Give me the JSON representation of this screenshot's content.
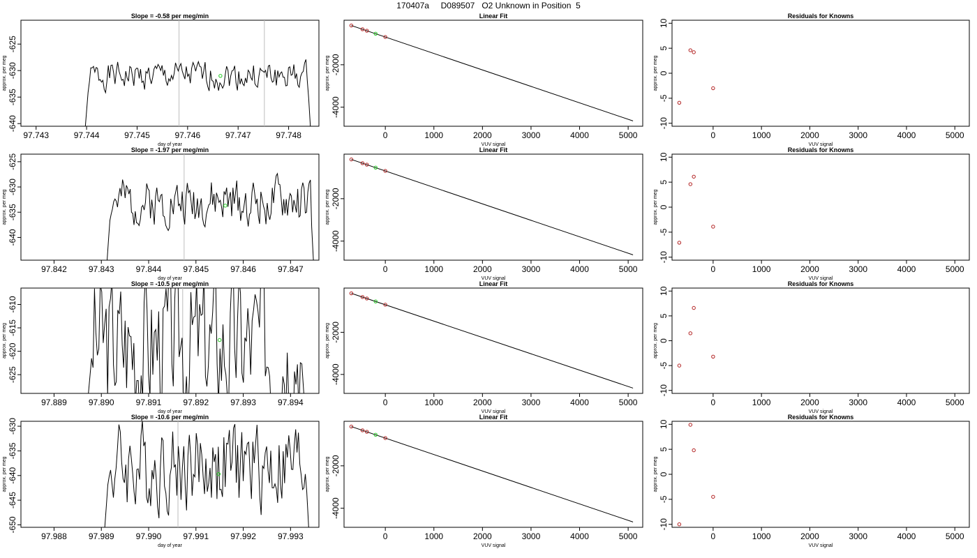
{
  "title": "170407a     D089507   O2 Unknown in Position  5",
  "colors": {
    "trace": "#000000",
    "point_known": "#b22222",
    "point_unknown": "#22cc22",
    "vline": "#bdbdbd"
  },
  "chart_data": [
    {
      "type": "line",
      "panel": "time-series",
      "row": 0,
      "title": "Slope =  -0.58  per meg/min",
      "xlabel": "day of year",
      "ylabel": "approx. per meg",
      "xlim": [
        97.7427,
        97.7486
      ],
      "ylim": [
        -640.5,
        -620.5
      ],
      "xticks": [
        97.743,
        97.744,
        97.745,
        97.746,
        97.747,
        97.748
      ],
      "xtick_labels": [
        "97.743",
        "97.744",
        "97.745",
        "97.746",
        "97.747",
        "97.748"
      ],
      "yticks": [
        -640,
        -635,
        -630,
        -625
      ],
      "ytick_labels": [
        "-640",
        "-635",
        "-630",
        "-625"
      ],
      "vlines": [
        97.74583,
        97.74752
      ],
      "highlight": {
        "x": 97.74665,
        "y": -631.0
      },
      "trace": {
        "x_start": 97.74395,
        "x_end": 97.74845,
        "n": 170,
        "mean": -631.0,
        "amp": 2.6,
        "seed": 1
      }
    },
    {
      "type": "scatter",
      "panel": "linear-fit",
      "row": 0,
      "title": "Linear Fit",
      "xlabel": "VUV signal",
      "ylabel": "approx. per meg",
      "xlim": [
        -850,
        5300
      ],
      "ylim": [
        -4900,
        100
      ],
      "xticks": [
        0,
        1000,
        2000,
        3000,
        4000,
        5000
      ],
      "xtick_labels": [
        "0",
        "1000",
        "2000",
        "3000",
        "4000",
        "5000"
      ],
      "yticks": [
        -4000,
        -2000
      ],
      "ytick_labels": [
        "-4000",
        "-2000"
      ],
      "line": {
        "x1": -700,
        "y1": -150,
        "x2": 5100,
        "y2": -4650
      },
      "known_points": [
        {
          "x": -700,
          "y": -150
        },
        {
          "x": -470,
          "y": -325
        },
        {
          "x": -380,
          "y": -395
        },
        {
          "x": 0,
          "y": -690
        }
      ],
      "unknown_point": {
        "x": -200,
        "y": -535
      }
    },
    {
      "type": "scatter",
      "panel": "residuals",
      "row": 0,
      "title": "Residuals for Knowns",
      "xlabel": "VUV signal",
      "ylabel": "approx. per meg",
      "xlim": [
        -850,
        5300
      ],
      "ylim": [
        -10.6,
        10.6
      ],
      "xticks": [
        0,
        1000,
        2000,
        3000,
        4000,
        5000
      ],
      "xtick_labels": [
        "0",
        "1000",
        "2000",
        "3000",
        "4000",
        "5000"
      ],
      "yticks": [
        -10,
        -5,
        0,
        5,
        10
      ],
      "ytick_labels": [
        "-10",
        "-5",
        "0",
        "5",
        "10"
      ],
      "points": [
        {
          "x": -700,
          "y": -5.9
        },
        {
          "x": -470,
          "y": 4.6
        },
        {
          "x": -400,
          "y": 4.2
        },
        {
          "x": 0,
          "y": -3.0
        }
      ]
    },
    {
      "type": "line",
      "panel": "time-series",
      "row": 1,
      "title": "Slope =  -1.97  per meg/min",
      "xlabel": "day of year",
      "ylabel": "approx. per meg",
      "xlim": [
        97.8413,
        97.8476
      ],
      "ylim": [
        -644.5,
        -623.5
      ],
      "xticks": [
        97.842,
        97.843,
        97.844,
        97.845,
        97.846,
        97.847
      ],
      "xtick_labels": [
        "97.842",
        "97.843",
        "97.844",
        "97.845",
        "97.846",
        "97.847"
      ],
      "yticks": [
        -640,
        -635,
        -630,
        -625
      ],
      "ytick_labels": [
        "-640",
        "-635",
        "-630",
        "-625"
      ],
      "vlines": [
        97.84475
      ],
      "highlight": {
        "x": 97.84562,
        "y": -633.7
      },
      "trace": {
        "x_start": 97.8431,
        "x_end": 97.8475,
        "n": 165,
        "mean": -633.0,
        "amp": 4.5,
        "seed": 2
      }
    },
    {
      "type": "scatter",
      "panel": "linear-fit",
      "row": 1,
      "title": "Linear Fit",
      "xlabel": "VUV signal",
      "ylabel": "approx. per meg",
      "xlim": [
        -850,
        5300
      ],
      "ylim": [
        -4900,
        100
      ],
      "xticks": [
        0,
        1000,
        2000,
        3000,
        4000,
        5000
      ],
      "xtick_labels": [
        "0",
        "1000",
        "2000",
        "3000",
        "4000",
        "5000"
      ],
      "yticks": [
        -4000,
        -2000
      ],
      "ytick_labels": [
        "-4000",
        "-2000"
      ],
      "line": {
        "x1": -700,
        "y1": -150,
        "x2": 5100,
        "y2": -4650
      },
      "known_points": [
        {
          "x": -700,
          "y": -150
        },
        {
          "x": -470,
          "y": -325
        },
        {
          "x": -380,
          "y": -395
        },
        {
          "x": 0,
          "y": -690
        }
      ],
      "unknown_point": {
        "x": -200,
        "y": -535
      }
    },
    {
      "type": "scatter",
      "panel": "residuals",
      "row": 1,
      "title": "Residuals for Knowns",
      "xlabel": "VUV signal",
      "ylabel": "approx. per meg",
      "xlim": [
        -850,
        5300
      ],
      "ylim": [
        -10.6,
        10.6
      ],
      "xticks": [
        0,
        1000,
        2000,
        3000,
        4000,
        5000
      ],
      "xtick_labels": [
        "0",
        "1000",
        "2000",
        "3000",
        "4000",
        "5000"
      ],
      "yticks": [
        -10,
        -5,
        0,
        5,
        10
      ],
      "ytick_labels": [
        "-10",
        "-5",
        "0",
        "5",
        "10"
      ],
      "points": [
        {
          "x": -700,
          "y": -7.1
        },
        {
          "x": -470,
          "y": 4.6
        },
        {
          "x": -400,
          "y": 6.1
        },
        {
          "x": 0,
          "y": -3.9
        }
      ]
    },
    {
      "type": "line",
      "panel": "time-series",
      "row": 2,
      "title": "Slope =  -10.5  per meg/min",
      "xlabel": "day of year",
      "ylabel": "approx. per meg",
      "xlim": [
        97.8883,
        97.8946
      ],
      "ylim": [
        -629,
        -606.5
      ],
      "xticks": [
        97.889,
        97.89,
        97.891,
        97.892,
        97.893,
        97.894
      ],
      "xtick_labels": [
        "97.889",
        "97.890",
        "97.891",
        "97.892",
        "97.893",
        "97.894"
      ],
      "yticks": [
        -625,
        -620,
        -615,
        -610
      ],
      "ytick_labels": [
        "-625",
        "-620",
        "-615",
        "-610"
      ],
      "vlines": [
        97.89172
      ],
      "highlight": {
        "x": 97.8925,
        "y": -617.6
      },
      "trace": {
        "x_start": 97.8897,
        "x_end": 97.8943,
        "n": 150,
        "mean": -618.0,
        "amp": 16.0,
        "seed": 3
      }
    },
    {
      "type": "scatter",
      "panel": "linear-fit",
      "row": 2,
      "title": "Linear Fit",
      "xlabel": "VUV signal",
      "ylabel": "approx. per meg",
      "xlim": [
        -850,
        5300
      ],
      "ylim": [
        -4900,
        100
      ],
      "xticks": [
        0,
        1000,
        2000,
        3000,
        4000,
        5000
      ],
      "xtick_labels": [
        "0",
        "1000",
        "2000",
        "3000",
        "4000",
        "5000"
      ],
      "yticks": [
        -4000,
        -2000
      ],
      "ytick_labels": [
        "-4000",
        "-2000"
      ],
      "line": {
        "x1": -700,
        "y1": -150,
        "x2": 5100,
        "y2": -4650
      },
      "known_points": [
        {
          "x": -700,
          "y": -150
        },
        {
          "x": -470,
          "y": -325
        },
        {
          "x": -380,
          "y": -395
        },
        {
          "x": 0,
          "y": -690
        }
      ],
      "unknown_point": {
        "x": -200,
        "y": -535
      }
    },
    {
      "type": "scatter",
      "panel": "residuals",
      "row": 2,
      "title": "Residuals for Knowns",
      "xlabel": "VUV signal",
      "ylabel": "approx. per meg",
      "xlim": [
        -850,
        5300
      ],
      "ylim": [
        -10.6,
        10.6
      ],
      "xticks": [
        0,
        1000,
        2000,
        3000,
        4000,
        5000
      ],
      "xtick_labels": [
        "0",
        "1000",
        "2000",
        "3000",
        "4000",
        "5000"
      ],
      "yticks": [
        -10,
        -5,
        0,
        5,
        10
      ],
      "ytick_labels": [
        "-10",
        "-5",
        "0",
        "5",
        "10"
      ],
      "points": [
        {
          "x": -700,
          "y": -5.0
        },
        {
          "x": -470,
          "y": 1.5
        },
        {
          "x": -400,
          "y": 6.6
        },
        {
          "x": 0,
          "y": -3.2
        }
      ]
    },
    {
      "type": "line",
      "panel": "time-series",
      "row": 3,
      "title": "Slope =  -10.6  per meg/min",
      "xlabel": "day of year",
      "ylabel": "approx. per meg",
      "xlim": [
        97.9873,
        97.9936
      ],
      "ylim": [
        -650.5,
        -629
      ],
      "xticks": [
        97.988,
        97.989,
        97.99,
        97.991,
        97.992,
        97.993
      ],
      "xtick_labels": [
        "97.988",
        "97.989",
        "97.990",
        "97.991",
        "97.992",
        "97.993"
      ],
      "yticks": [
        -650,
        -645,
        -640,
        -635,
        -630
      ],
      "ytick_labels": [
        "-650",
        "-645",
        "-640",
        "-635",
        "-630"
      ],
      "vlines": [
        97.99062
      ],
      "highlight": {
        "x": 97.99148,
        "y": -639.7
      },
      "trace": {
        "x_start": 97.98905,
        "x_end": 97.9934,
        "n": 150,
        "mean": -638.0,
        "amp": 9.0,
        "seed": 4
      }
    },
    {
      "type": "scatter",
      "panel": "linear-fit",
      "row": 3,
      "title": "Linear Fit",
      "xlabel": "VUV signal",
      "ylabel": "approx. per meg",
      "xlim": [
        -850,
        5300
      ],
      "ylim": [
        -4900,
        100
      ],
      "xticks": [
        0,
        1000,
        2000,
        3000,
        4000,
        5000
      ],
      "xtick_labels": [
        "0",
        "1000",
        "2000",
        "3000",
        "4000",
        "5000"
      ],
      "yticks": [
        -4000,
        -2000
      ],
      "ytick_labels": [
        "-4000",
        "-2000"
      ],
      "line": {
        "x1": -700,
        "y1": -150,
        "x2": 5100,
        "y2": -4650
      },
      "known_points": [
        {
          "x": -700,
          "y": -150
        },
        {
          "x": -470,
          "y": -325
        },
        {
          "x": -380,
          "y": -395
        },
        {
          "x": 0,
          "y": -690
        }
      ],
      "unknown_point": {
        "x": -200,
        "y": -535
      }
    },
    {
      "type": "scatter",
      "panel": "residuals",
      "row": 3,
      "title": "Residuals for Knowns",
      "xlabel": "VUV signal",
      "ylabel": "approx. per meg",
      "xlim": [
        -850,
        5300
      ],
      "ylim": [
        -10.6,
        10.6
      ],
      "xticks": [
        0,
        1000,
        2000,
        3000,
        4000,
        5000
      ],
      "xtick_labels": [
        "0",
        "1000",
        "2000",
        "3000",
        "4000",
        "5000"
      ],
      "yticks": [
        -10,
        -5,
        0,
        5,
        10
      ],
      "ytick_labels": [
        "-10",
        "-5",
        "0",
        "5",
        "10"
      ],
      "points": [
        {
          "x": -700,
          "y": -10.0
        },
        {
          "x": -470,
          "y": 9.9
        },
        {
          "x": -400,
          "y": 4.8
        },
        {
          "x": 0,
          "y": -4.5
        }
      ]
    }
  ]
}
